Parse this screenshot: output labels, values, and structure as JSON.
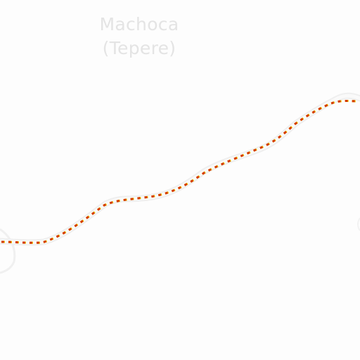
{
  "map": {
    "place": {
      "name": "Machoca",
      "alt_name": "(Tepere)"
    },
    "colors": {
      "background": "#fdfdfd",
      "road_casing": "#efefef",
      "road_fill": "#fafafa",
      "railway_dash": "#d43a00",
      "railway_gap": "#f2d400",
      "label": "#e4e4e4"
    },
    "features": {
      "route": "railway-line",
      "terrain_edge": "contour-edge"
    }
  }
}
